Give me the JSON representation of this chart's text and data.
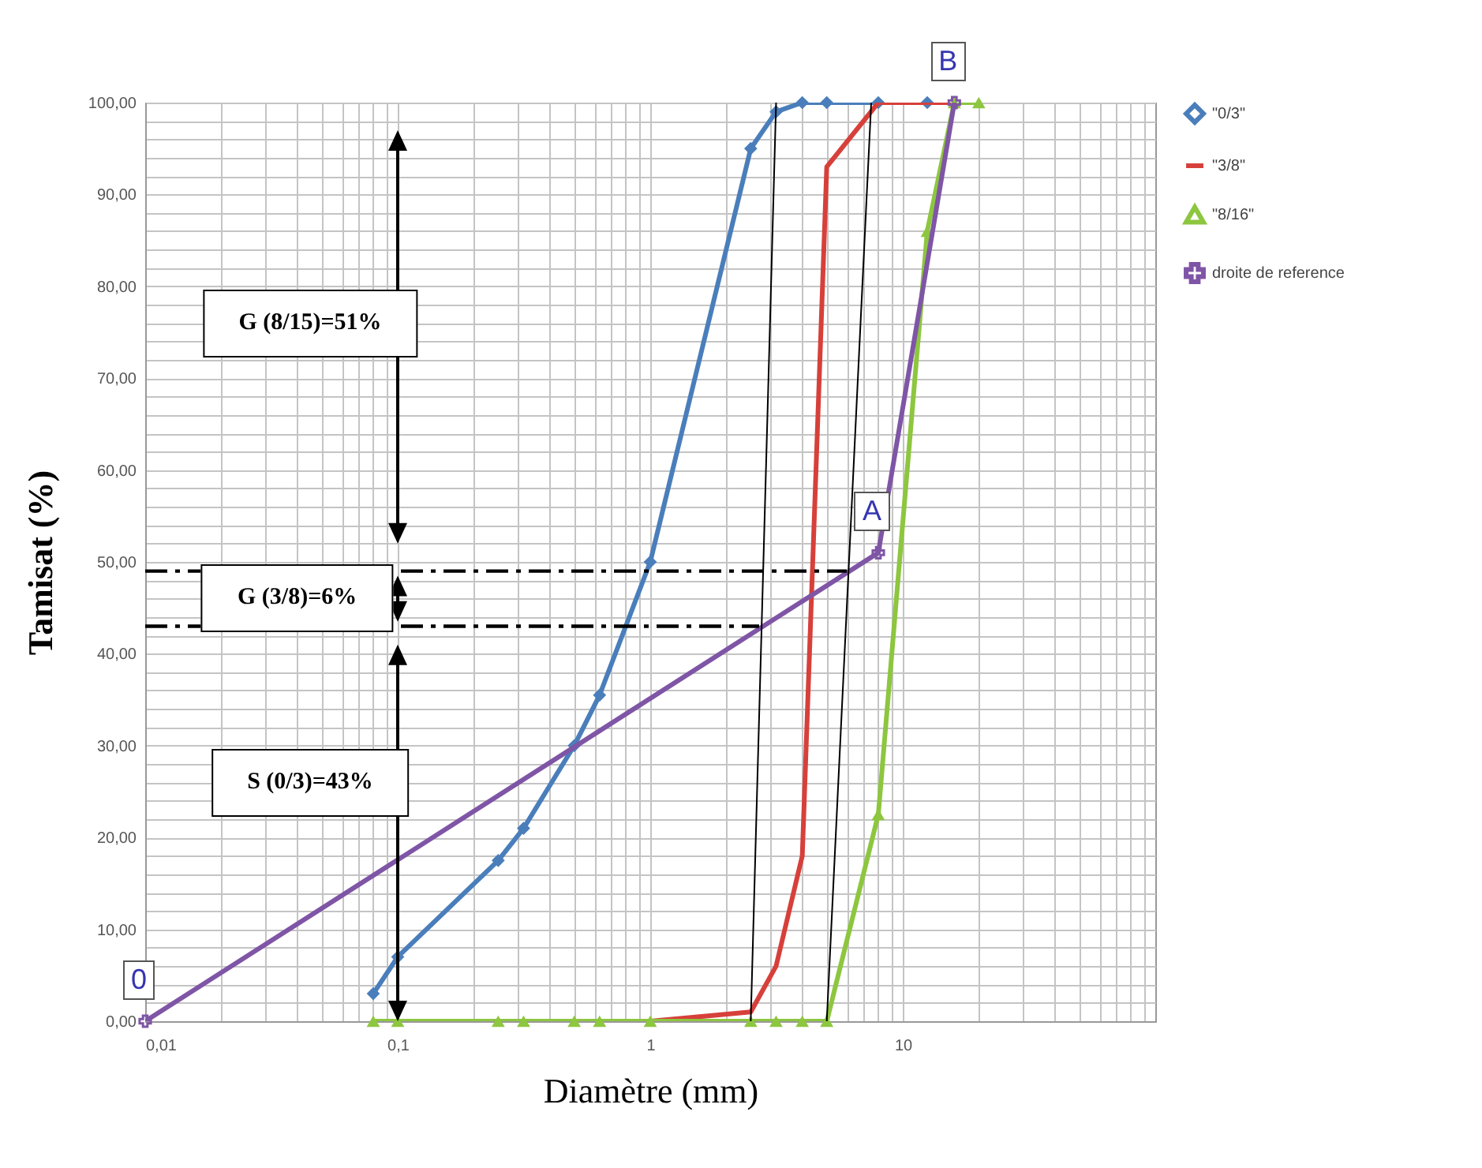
{
  "chart_data": {
    "type": "line",
    "xlabel": "Diamètre (mm)",
    "ylabel": "Tamisat (%)",
    "log": "x",
    "grid": true,
    "legend": "right",
    "xlim": [
      0.01,
      100
    ],
    "xticks": [
      {
        "value": 0.01,
        "label": "0,01"
      },
      {
        "value": 0.02,
        "label": null
      },
      {
        "value": 0.03,
        "label": null
      },
      {
        "value": 0.04,
        "label": null
      },
      {
        "value": 0.05,
        "label": null
      },
      {
        "value": 0.06,
        "label": null
      },
      {
        "value": 0.07,
        "label": null
      },
      {
        "value": 0.08,
        "label": null
      },
      {
        "value": 0.09,
        "label": null
      },
      {
        "value": 0.1,
        "label": "0,1"
      },
      {
        "value": 0.2,
        "label": null
      },
      {
        "value": 0.3,
        "label": null
      },
      {
        "value": 0.4,
        "label": null
      },
      {
        "value": 0.5,
        "label": null
      },
      {
        "value": 0.6,
        "label": null
      },
      {
        "value": 0.7,
        "label": null
      },
      {
        "value": 0.8,
        "label": null
      },
      {
        "value": 0.9,
        "label": null
      },
      1,
      {
        "value": 2,
        "label": null
      },
      {
        "value": 3,
        "label": null
      },
      {
        "value": 4,
        "label": null
      },
      {
        "value": 5,
        "label": null
      },
      {
        "value": 6,
        "label": null
      },
      {
        "value": 7,
        "label": null
      },
      {
        "value": 8,
        "label": null
      },
      {
        "value": 9,
        "label": null
      },
      10,
      {
        "value": 20,
        "label": null
      },
      {
        "value": 30,
        "label": null
      },
      {
        "value": 40,
        "label": null
      },
      {
        "value": 50,
        "label": null
      },
      {
        "value": 60,
        "label": null
      },
      {
        "value": 70,
        "label": null
      },
      {
        "value": 80,
        "label": null
      },
      {
        "value": 90,
        "label": null
      }
    ],
    "ylim": [
      0,
      100
    ],
    "yticks": [
      {
        "value": 0,
        "label": "0,00"
      },
      {
        "value": 2,
        "label": null
      },
      {
        "value": 4,
        "label": null
      },
      {
        "value": 6,
        "label": null
      },
      {
        "value": 8,
        "label": null
      },
      {
        "value": 10,
        "label": "10,00"
      },
      {
        "value": 12,
        "label": null
      },
      {
        "value": 14,
        "label": null
      },
      {
        "value": 16,
        "label": null
      },
      {
        "value": 18,
        "label": null
      },
      {
        "value": 20,
        "label": "20,00"
      },
      {
        "value": 22,
        "label": null
      },
      {
        "value": 24,
        "label": null
      },
      {
        "value": 26,
        "label": null
      },
      {
        "value": 28,
        "label": null
      },
      {
        "value": 30,
        "label": "30,00"
      },
      {
        "value": 32,
        "label": null
      },
      {
        "value": 34,
        "label": null
      },
      {
        "value": 36,
        "label": null
      },
      {
        "value": 38,
        "label": null
      },
      {
        "value": 40,
        "label": "40,00"
      },
      {
        "value": 42,
        "label": null
      },
      {
        "value": 44,
        "label": null
      },
      {
        "value": 46,
        "label": null
      },
      {
        "value": 48,
        "label": null
      },
      {
        "value": 50,
        "label": "50,00"
      },
      {
        "value": 52,
        "label": null
      },
      {
        "value": 54,
        "label": null
      },
      {
        "value": 56,
        "label": null
      },
      {
        "value": 58,
        "label": null
      },
      {
        "value": 60,
        "label": "60,00"
      },
      {
        "value": 62,
        "label": null
      },
      {
        "value": 64,
        "label": null
      },
      {
        "value": 66,
        "label": null
      },
      {
        "value": 68,
        "label": null
      },
      {
        "value": 70,
        "label": "70,00"
      },
      {
        "value": 72,
        "label": null
      },
      {
        "value": 74,
        "label": null
      },
      {
        "value": 76,
        "label": null
      },
      {
        "value": 78,
        "label": null
      },
      {
        "value": 80,
        "label": "80,00"
      },
      {
        "value": 82,
        "label": null
      },
      {
        "value": 84,
        "label": null
      },
      {
        "value": 86,
        "label": null
      },
      {
        "value": 88,
        "label": null
      },
      {
        "value": 90,
        "label": "90,00"
      },
      {
        "value": 92,
        "label": null
      },
      {
        "value": 94,
        "label": null
      },
      {
        "value": 96,
        "label": null
      },
      {
        "value": 98,
        "label": null
      },
      {
        "value": 100,
        "label": "100,00"
      }
    ],
    "series": [
      {
        "name": "\"0/3\"",
        "color": "#4a7ebb",
        "marker": "diamond",
        "x": [
          0.08,
          0.1,
          0.25,
          0.315,
          0.5,
          0.63,
          1,
          2.5,
          3.15,
          4,
          5,
          8,
          12.5
        ],
        "values": [
          3,
          7,
          17.5,
          21,
          30,
          35.5,
          50,
          95,
          99,
          100,
          100,
          100,
          100
        ]
      },
      {
        "name": "\"3/8\"",
        "color": "#d7403a",
        "marker": "none",
        "x": [
          1,
          2.5,
          3.15,
          4,
          5,
          8,
          16
        ],
        "values": [
          0,
          1,
          6,
          18,
          93,
          100,
          100
        ]
      },
      {
        "name": "\"8/16\"",
        "color": "#8dc63f",
        "marker": "triangle",
        "x": [
          0.08,
          0.1,
          0.25,
          0.315,
          0.5,
          0.63,
          1,
          2.5,
          3.15,
          4,
          5,
          8,
          12.5,
          16,
          20
        ],
        "values": [
          0,
          0,
          0,
          0,
          0,
          0,
          0,
          0,
          0,
          0,
          0,
          22.5,
          86,
          100,
          100
        ]
      },
      {
        "name": "droite de reference",
        "color": "#7f55a6",
        "marker": "cross",
        "x": [
          0.01,
          8,
          16
        ],
        "values": [
          0,
          51,
          100
        ]
      },
      {
        "color": "#000000",
        "marker": "none",
        "x": [
          2.5,
          3.15
        ],
        "values": [
          0,
          100
        ]
      },
      {
        "color": "#000000",
        "marker": "none",
        "x": [
          5,
          7.5
        ],
        "values": [
          0,
          100
        ]
      },
      {
        "color": "#000000",
        "marker": "none",
        "line_style": "dashed",
        "x": [
          0.01,
          6
        ],
        "values": [
          49,
          49
        ]
      },
      {
        "color": "#000000",
        "marker": "none",
        "line_style": "dashed",
        "x": [
          0.01,
          2.7
        ],
        "values": [
          43,
          43
        ]
      }
    ],
    "annotations": [
      "G (8/15)=51%",
      "G (3/8)=6%",
      "S (0/3)=43%",
      {
        "text": "A",
        "x": 8,
        "y": 51
      },
      {
        "text": "B",
        "x": 16,
        "y": 100
      },
      {
        "text": "0",
        "x": 0.01,
        "y": 0
      }
    ]
  }
}
